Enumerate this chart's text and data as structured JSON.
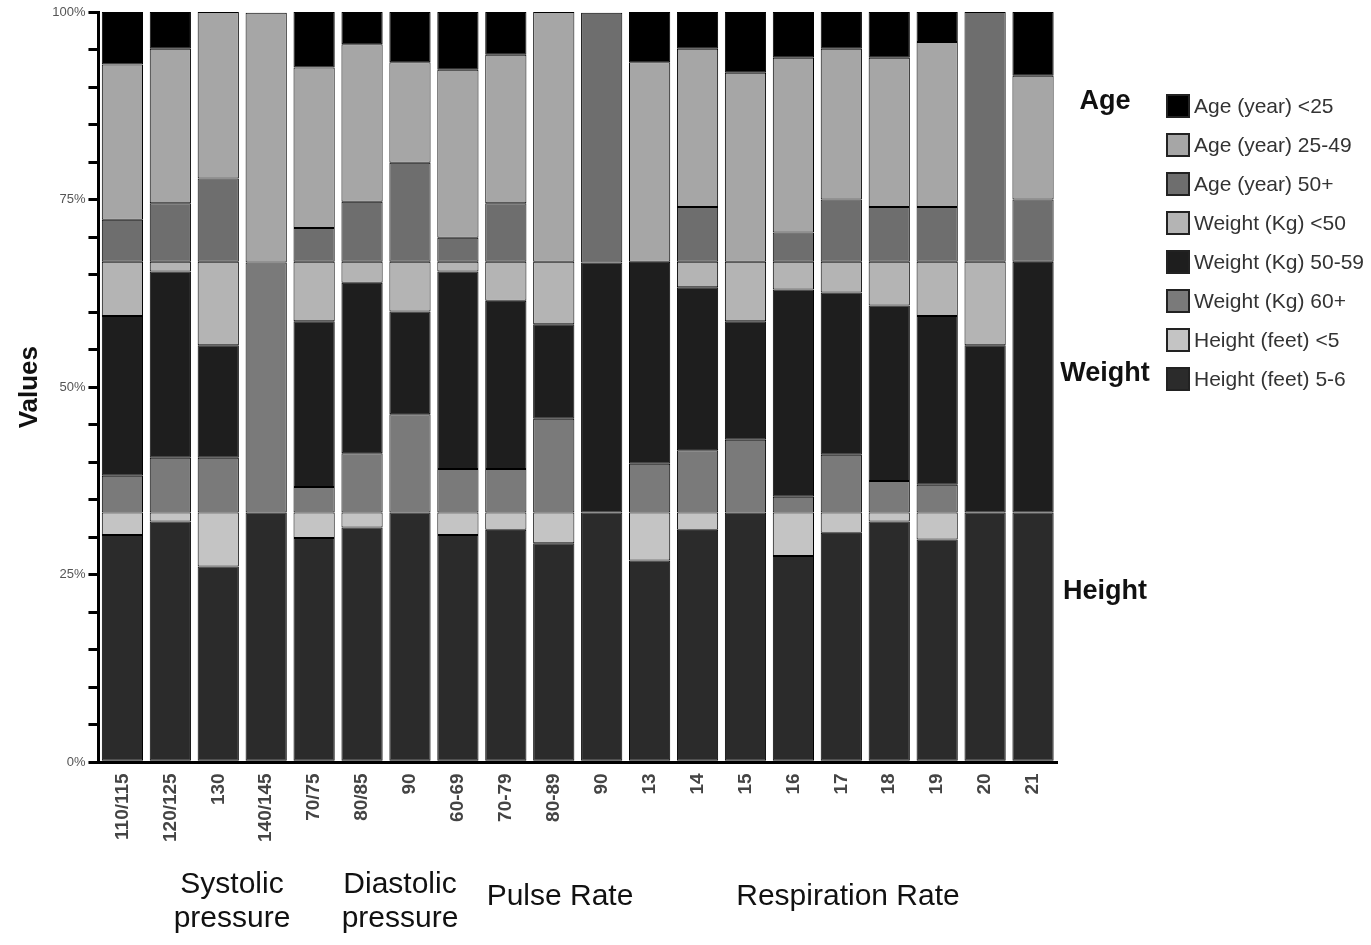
{
  "chart_data": {
    "type": "bar",
    "stacked": true,
    "ylabel": "Values",
    "legend": "right",
    "grid": false,
    "categories": [
      "110/115",
      "120/125",
      "130",
      "140/145",
      "70/75",
      "80/85",
      "90",
      "60-69",
      "70-79",
      "80-89",
      "90",
      "13",
      "14",
      "15",
      "16",
      "17",
      "18",
      "19",
      "20",
      "21"
    ],
    "ylim": [
      0,
      100
    ],
    "yticks": [
      {
        "value": 0,
        "label": "0%"
      },
      {
        "value": 5,
        "label": null
      },
      {
        "value": 10,
        "label": null
      },
      {
        "value": 15,
        "label": null
      },
      {
        "value": 20,
        "label": null
      },
      {
        "value": 25,
        "label": "25%"
      },
      {
        "value": 30,
        "label": null
      },
      {
        "value": 35,
        "label": null
      },
      {
        "value": 40,
        "label": null
      },
      {
        "value": 45,
        "label": null
      },
      {
        "value": 50,
        "label": "50%"
      },
      {
        "value": 55,
        "label": null
      },
      {
        "value": 60,
        "label": null
      },
      {
        "value": 65,
        "label": null
      },
      {
        "value": 70,
        "label": null
      },
      {
        "value": 75,
        "label": "75%"
      },
      {
        "value": 80,
        "label": null
      },
      {
        "value": 85,
        "label": null
      },
      {
        "value": 90,
        "label": null
      },
      {
        "value": 95,
        "label": null
      },
      {
        "value": 100,
        "label": "100%"
      }
    ],
    "series": [
      {
        "name": "Height (feet) 5-6",
        "color": "#2b2b2b",
        "values": [
          30.3,
          32.1,
          26.1,
          33.3,
          29.9,
          31.3,
          33.3,
          30.3,
          31.0,
          29.2,
          33.3,
          26.9,
          31.0,
          33.3,
          27.5,
          30.6,
          32.1,
          29.7,
          33.3,
          33.3
        ]
      },
      {
        "name": "Height (feet) <5",
        "color": "#c4c4c4",
        "values": [
          3.0,
          1.2,
          7.2,
          0,
          3.4,
          2.0,
          0,
          3.0,
          2.3,
          4.1,
          0,
          6.4,
          2.3,
          0,
          5.8,
          2.7,
          1.2,
          3.6,
          0,
          0
        ]
      },
      {
        "name": "Weight (Kg) 60+",
        "color": "#7a7a7a",
        "values": [
          4.9,
          7.3,
          7.3,
          33.3,
          3.4,
          7.9,
          13.1,
          5.8,
          5.8,
          12.5,
          0,
          6.5,
          8.3,
          9.7,
          2.1,
          7.7,
          4.2,
          3.7,
          0,
          0
        ]
      },
      {
        "name": "Weight (Kg) 50-59",
        "color": "#1e1e1e",
        "values": [
          21.3,
          24.8,
          15.0,
          0,
          22.1,
          22.7,
          13.7,
          26.3,
          22.4,
          12.6,
          33.3,
          26.9,
          21.7,
          15.8,
          27.6,
          21.6,
          23.4,
          22.5,
          22.3,
          33.4
        ]
      },
      {
        "name": "Weight (Kg) <50",
        "color": "#b4b4b4",
        "values": [
          7.2,
          1.3,
          11.1,
          0,
          7.9,
          2.8,
          6.6,
          1.3,
          5.2,
          8.3,
          0,
          0,
          3.4,
          7.9,
          3.7,
          4.1,
          5.8,
          7.2,
          11.1,
          0
        ]
      },
      {
        "name": "Age (year) 50+",
        "color": "#6e6e6e",
        "values": [
          5.6,
          7.8,
          11.1,
          0,
          4.5,
          8.0,
          13.2,
          3.2,
          7.8,
          0,
          33.3,
          0,
          7.3,
          0,
          3.9,
          8.3,
          7.3,
          7.3,
          33.3,
          8.3
        ]
      },
      {
        "name": "Age (year) 25-49",
        "color": "#a6a6a6",
        "values": [
          20.7,
          20.6,
          22.2,
          33.3,
          21.4,
          21.0,
          13.4,
          22.4,
          19.8,
          33.3,
          0,
          26.6,
          21.1,
          25.2,
          23.3,
          20.1,
          19.9,
          22.0,
          0,
          16.5
        ]
      },
      {
        "name": "Age (year) <25",
        "color": "#000000",
        "values": [
          7.0,
          4.9,
          0,
          0,
          7.4,
          4.3,
          6.7,
          7.7,
          5.7,
          0,
          0,
          6.7,
          4.9,
          8.1,
          6.1,
          4.9,
          6.1,
          4.0,
          0,
          8.5
        ]
      }
    ],
    "annotations": [
      "Age",
      "Weight",
      "Height",
      "Systolic pressure",
      "Diastolic pressure",
      "Pulse Rate",
      "Respiration Rate"
    ]
  }
}
